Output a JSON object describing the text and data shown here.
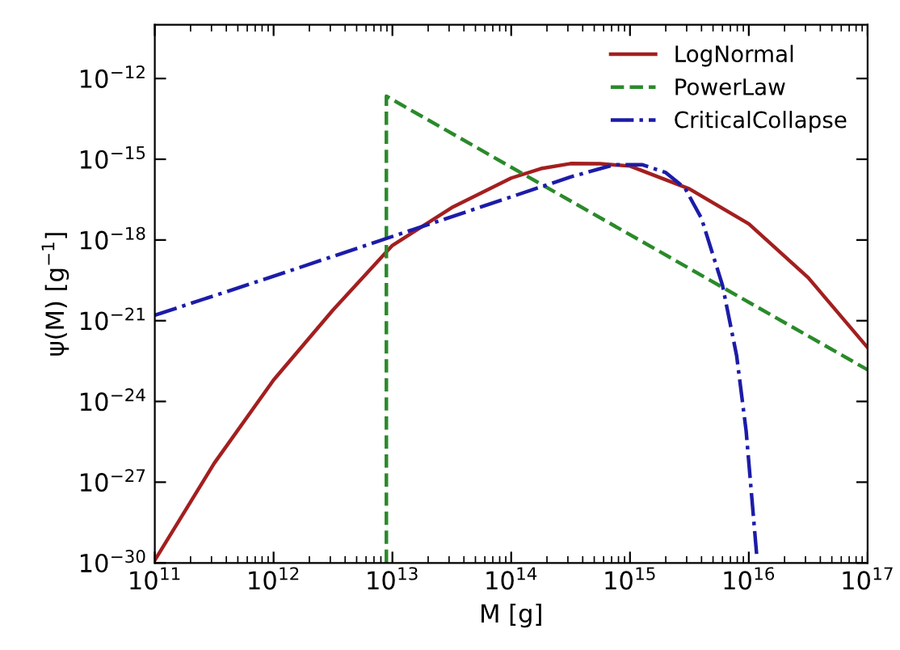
{
  "chart_data": {
    "type": "line",
    "xlabel": "M [g]",
    "ylabel": "ψ(M) [g$^{−1}$]",
    "log": "xy",
    "xlim": [
      100000000000.0,
      1e+17
    ],
    "ylim": [
      1e-30,
      1e-10
    ],
    "xticks": [
      {
        "value": 100000000000.0,
        "label": "10$^{11}$"
      },
      {
        "value": 1000000000000.0,
        "label": "10$^{12}$"
      },
      {
        "value": 10000000000000.0,
        "label": "10$^{13}$"
      },
      {
        "value": 100000000000000.0,
        "label": "10$^{14}$"
      },
      {
        "value": 1000000000000000.0,
        "label": "10$^{15}$"
      },
      {
        "value": 1e+16,
        "label": "10$^{16}$"
      },
      {
        "value": 1e+17,
        "label": "10$^{17}$"
      }
    ],
    "yticks": [
      {
        "value": 1e-30,
        "label": "10$^{−30}$"
      },
      {
        "value": 1e-27,
        "label": "10$^{−27}$"
      },
      {
        "value": 1e-24,
        "label": "10$^{−24}$"
      },
      {
        "value": 1e-21,
        "label": "10$^{−21}$"
      },
      {
        "value": 1e-18,
        "label": "10$^{−18}$"
      },
      {
        "value": 1e-15,
        "label": "10$^{−15}$"
      },
      {
        "value": 1e-12,
        "label": "10$^{−12}$"
      }
    ],
    "grid": false,
    "legend": "top right",
    "marker": "none",
    "series": [
      {
        "name": "LogNormal",
        "color": "#a31f1f",
        "line_style": "solid",
        "x": [
          100000000000.0,
          316000000000.0,
          1000000000000.0,
          3160000000000.0,
          10000000000000.0,
          31600000000000.0,
          100000000000000.0,
          178000000000000.0,
          316000000000000.0,
          560000000000000.0,
          1000000000000000.0,
          3160000000000000.0,
          1e+16,
          3.16e+16,
          1e+17
        ],
        "values": [
          1.26e-30,
          5e-27,
          6.3e-24,
          2.5e-21,
          6.3e-19,
          1.6e-17,
          2e-16,
          4.5e-16,
          6.9e-16,
          6.8e-16,
          5.6e-16,
          7.9e-17,
          4e-18,
          4e-20,
          1e-22
        ]
      },
      {
        "name": "PowerLaw",
        "color": "#2a8a2a",
        "line_style": "dashed",
        "x": [
          8900000000000.0,
          8900000000000.0,
          1e+17
        ],
        "values": [
          1e-30,
          2.2e-13,
          1.5e-23
        ]
      },
      {
        "name": "CriticalCollapse",
        "color": "#1c1ca8",
        "line_style": "dashdot",
        "x": [
          100000000000.0,
          1000000000000.0,
          10000000000000.0,
          100000000000000.0,
          316000000000000.0,
          740000000000000.0,
          1260000000000000.0,
          2000000000000000.0,
          2900000000000000.0,
          4000000000000000.0,
          6000000000000000.0,
          7900000000000000.0,
          9500000000000000.0,
          1.17e+16
        ],
        "values": [
          1.6e-21,
          4.5e-20,
          1.35e-18,
          4e-17,
          2.2e-16,
          6.3e-16,
          6.3e-16,
          3.2e-16,
          8.5e-17,
          6.3e-18,
          2.1e-20,
          5e-23,
          7.9e-26,
          1.6e-30
        ]
      }
    ]
  }
}
